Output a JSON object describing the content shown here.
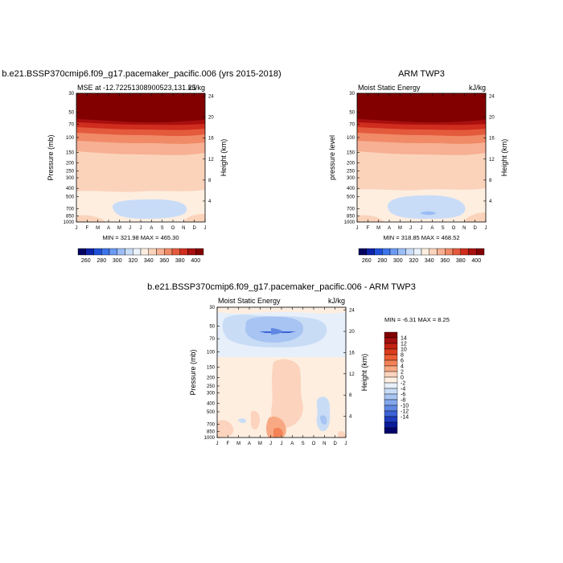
{
  "chart_data": [
    {
      "type": "heatmap",
      "title": "b.e21.BSSP370cmip6.f09_g17.pacemaker_pacific.006 (yrs 2015-2018)",
      "left_label": "MSE at -12.722513089005 23,131.25",
      "left_label_text": "MSE at -12.72251308900523,131.25",
      "right_label": "kJ/kg",
      "xlabel": "",
      "ylabel": "Pressure (mb)",
      "y2label": "Height (km)",
      "minmax": "MIN = 321.98 MAX = 465.30",
      "x_ticks": [
        "J",
        "F",
        "M",
        "A",
        "M",
        "J",
        "J",
        "A",
        "S",
        "O",
        "N",
        "D",
        "J"
      ],
      "y_ticks": [
        "30",
        "50",
        "70",
        "100",
        "150",
        "200",
        "250",
        "300",
        "400",
        "500",
        "700",
        "850",
        "1000"
      ],
      "y2_ticks": [
        "24",
        "20",
        "16",
        "12",
        "8",
        "4"
      ],
      "colorbar_labels": [
        "260",
        "280",
        "300",
        "320",
        "340",
        "360",
        "380",
        "400"
      ]
    },
    {
      "type": "heatmap",
      "title": "ARM TWP3",
      "left_label": "Moist Static Energy",
      "right_label": "kJ/kg",
      "ylabel": "pressure level",
      "y2label": "Height (km)",
      "minmax": "MIN = 318.85 MAX = 468.52",
      "x_ticks": [
        "J",
        "F",
        "M",
        "A",
        "M",
        "J",
        "J",
        "A",
        "S",
        "O",
        "N",
        "D",
        "J"
      ],
      "y_ticks": [
        "30",
        "50",
        "70",
        "100",
        "150",
        "200",
        "250",
        "300",
        "400",
        "500",
        "700",
        "850",
        "1000"
      ],
      "y2_ticks": [
        "24",
        "20",
        "16",
        "12",
        "8",
        "4"
      ],
      "colorbar_labels": [
        "260",
        "280",
        "300",
        "320",
        "340",
        "360",
        "380",
        "400"
      ]
    },
    {
      "type": "heatmap",
      "title": "b.e21.BSSP370cmip6.f09_g17.pacemaker_pacific.006 - ARM TWP3",
      "left_label": "Moist Static Energy",
      "right_label": "kJ/kg",
      "ylabel": "Pressure (mb)",
      "y2label": "Height (km)",
      "minmax": "MIN =  -6.31 MAX =   8.25",
      "x_ticks": [
        "J",
        "F",
        "M",
        "A",
        "M",
        "J",
        "J",
        "A",
        "S",
        "O",
        "N",
        "D",
        "J"
      ],
      "y_ticks": [
        "30",
        "50",
        "70",
        "100",
        "150",
        "200",
        "250",
        "300",
        "400",
        "500",
        "700",
        "850",
        "1000"
      ],
      "y2_ticks": [
        "24",
        "20",
        "16",
        "12",
        "8",
        "4"
      ],
      "colorbar_labels": [
        "14",
        "12",
        "10",
        "8",
        "6",
        "4",
        "2",
        "0",
        "-2",
        "-4",
        "-6",
        "-8",
        "-10",
        "-12",
        "-14"
      ]
    }
  ],
  "colors": {
    "mse_scale": [
      "#03035f",
      "#0b22a8",
      "#1f4fd8",
      "#3d74ea",
      "#6a9af2",
      "#9cbcf5",
      "#c8dcf8",
      "#eaf2fb",
      "#fdeee0",
      "#fbd3bb",
      "#f7b093",
      "#f08a67",
      "#e45a3c",
      "#cf2d1e",
      "#a90f0f",
      "#820000"
    ],
    "diff_scale": [
      "#820000",
      "#a41010",
      "#c32313",
      "#db3d1c",
      "#eb5d33",
      "#f38257",
      "#f8a983",
      "#fcd3bd",
      "#fff0e3",
      "#e6effa",
      "#c9dcf6",
      "#a7c4f2",
      "#83a7ec",
      "#5f87e3",
      "#3c62d6",
      "#1d3bbf",
      "#0a1c9a",
      "#02036b"
    ]
  }
}
